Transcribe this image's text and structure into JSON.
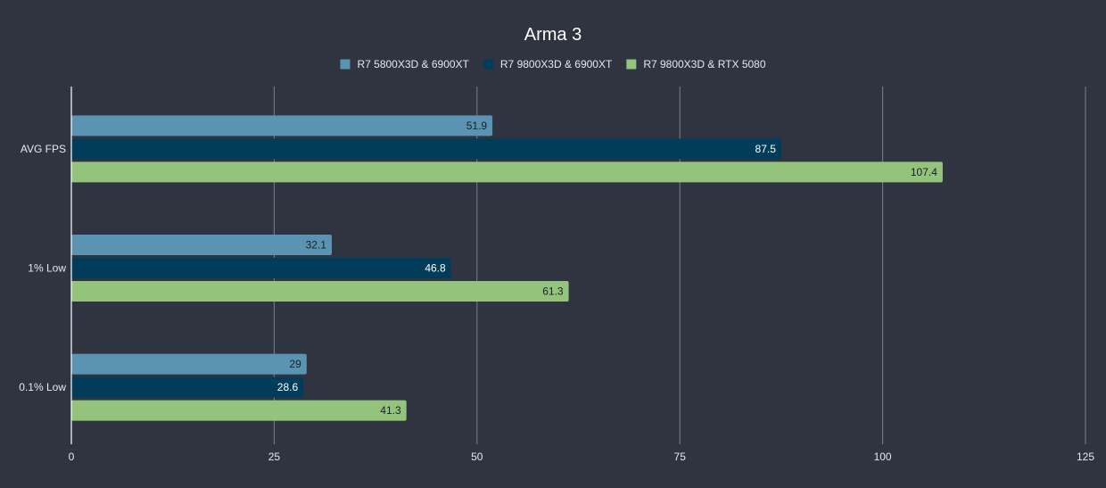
{
  "chart_data": {
    "type": "bar",
    "orientation": "horizontal",
    "title": "Arma 3",
    "categories": [
      "AVG FPS",
      "1% Low",
      "0.1% Low"
    ],
    "series": [
      {
        "name": "R7 5800X3D & 6900XT",
        "color": "#5b93b2",
        "label_color": "#1b1f27",
        "values": [
          51.9,
          32.1,
          29
        ]
      },
      {
        "name": "R7 9800X3D & 6900XT",
        "color": "#013d5b",
        "label_color": "#ffffff",
        "values": [
          87.5,
          46.8,
          28.6
        ]
      },
      {
        "name": "R7 9800X3D & RTX 5080",
        "color": "#94c47c",
        "label_color": "#1b1f27",
        "values": [
          107.4,
          61.3,
          41.3
        ]
      }
    ],
    "xlim": [
      0,
      125
    ],
    "xticks": [
      0,
      25,
      50,
      75,
      100,
      125
    ],
    "grid": true,
    "legend_position": "top"
  }
}
